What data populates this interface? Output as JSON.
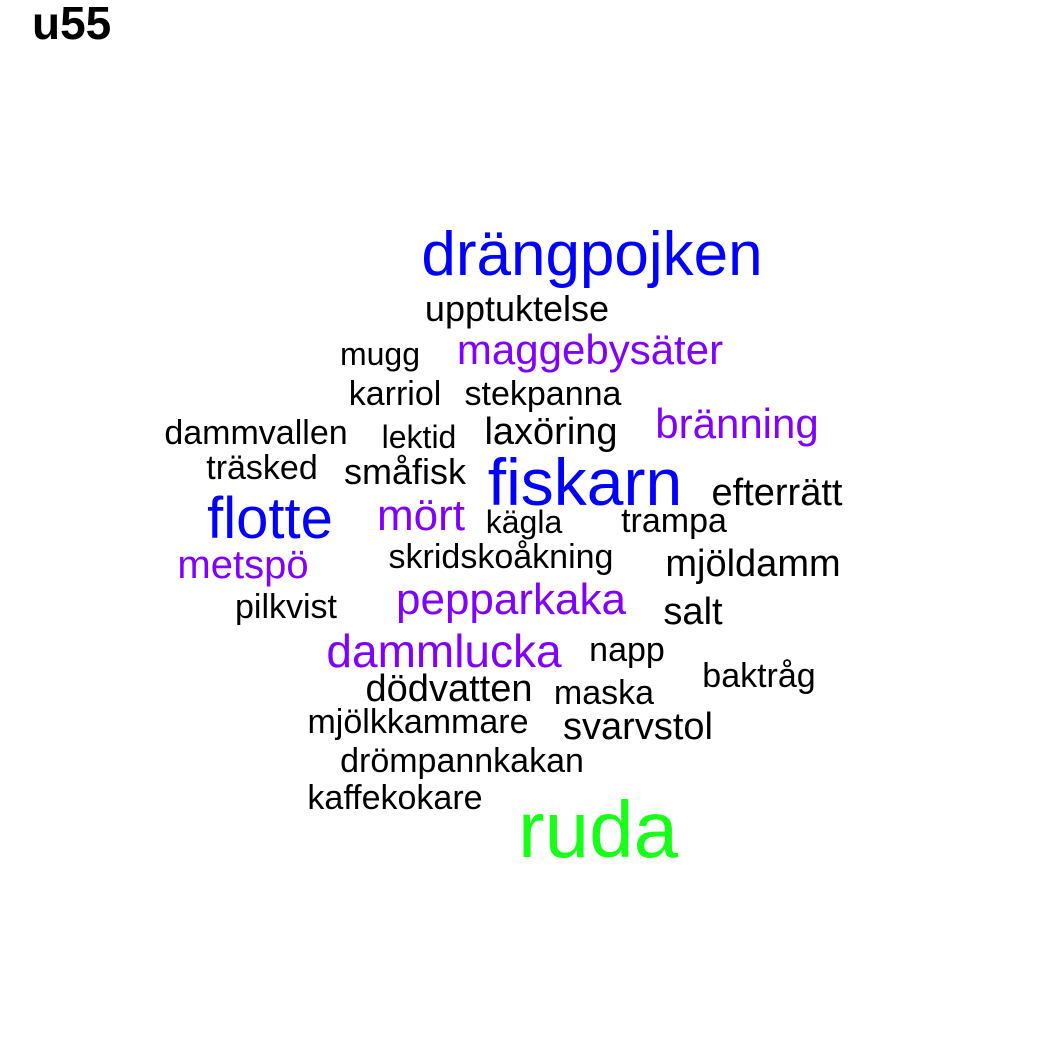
{
  "title": "u55",
  "colors": {
    "black": "#000000",
    "purple": "#8000ff",
    "blue": "#0000ff",
    "green": "#1aff1a"
  },
  "words": [
    {
      "id": "drangpojken",
      "text": "drängpojken",
      "color": "blue"
    },
    {
      "id": "upptuktelse",
      "text": "upptuktelse",
      "color": "black"
    },
    {
      "id": "mugg",
      "text": "mugg",
      "color": "black"
    },
    {
      "id": "maggebysater",
      "text": "maggebysäter",
      "color": "purple"
    },
    {
      "id": "karriol",
      "text": "karriol",
      "color": "black"
    },
    {
      "id": "stekpanna",
      "text": "stekpanna",
      "color": "black"
    },
    {
      "id": "branning",
      "text": "bränning",
      "color": "purple"
    },
    {
      "id": "dammvallen",
      "text": "dammvallen",
      "color": "black"
    },
    {
      "id": "lektid",
      "text": "lektid",
      "color": "black"
    },
    {
      "id": "laxoring",
      "text": "laxöring",
      "color": "black"
    },
    {
      "id": "trasked",
      "text": "träsked",
      "color": "black"
    },
    {
      "id": "smafisk",
      "text": "småfisk",
      "color": "black"
    },
    {
      "id": "fiskarn",
      "text": "fiskarn",
      "color": "blue"
    },
    {
      "id": "efterratt",
      "text": "efterrätt",
      "color": "black"
    },
    {
      "id": "flotte",
      "text": "flotte",
      "color": "blue"
    },
    {
      "id": "mort",
      "text": "mört",
      "color": "purple"
    },
    {
      "id": "kagla",
      "text": "kägla",
      "color": "black"
    },
    {
      "id": "trampa",
      "text": "trampa",
      "color": "black"
    },
    {
      "id": "metspo",
      "text": "metspö",
      "color": "purple"
    },
    {
      "id": "skridskoakning",
      "text": "skridskoåkning",
      "color": "black"
    },
    {
      "id": "mjoldamm",
      "text": "mjöldamm",
      "color": "black"
    },
    {
      "id": "pilkvist",
      "text": "pilkvist",
      "color": "black"
    },
    {
      "id": "pepparkaka",
      "text": "pepparkaka",
      "color": "purple"
    },
    {
      "id": "salt",
      "text": "salt",
      "color": "black"
    },
    {
      "id": "dammlucka",
      "text": "dammlucka",
      "color": "purple"
    },
    {
      "id": "napp",
      "text": "napp",
      "color": "black"
    },
    {
      "id": "baktrag",
      "text": "baktråg",
      "color": "black"
    },
    {
      "id": "dodvatten",
      "text": "dödvatten",
      "color": "black"
    },
    {
      "id": "maska",
      "text": "maska",
      "color": "black"
    },
    {
      "id": "mjolkkammare",
      "text": "mjölkkammare",
      "color": "black"
    },
    {
      "id": "svarvstol",
      "text": "svarvstol",
      "color": "black"
    },
    {
      "id": "drompannkakan",
      "text": "drömpannkakan",
      "color": "black"
    },
    {
      "id": "kaffekokare",
      "text": "kaffekokare",
      "color": "black"
    },
    {
      "id": "ruda",
      "text": "ruda",
      "color": "green"
    }
  ]
}
